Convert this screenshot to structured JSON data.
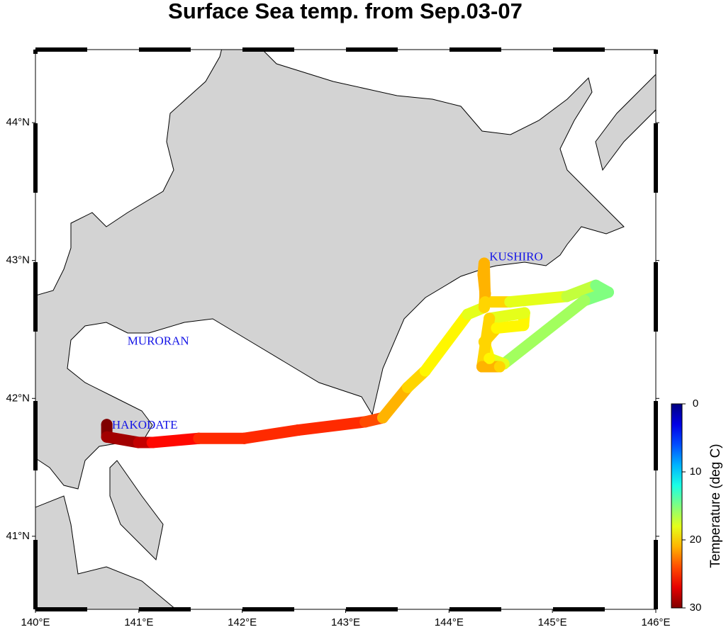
{
  "title": "Surface Sea temp. from Sep.03-07",
  "map": {
    "lon_range": [
      140,
      146
    ],
    "lat_range": [
      40.47,
      44.53
    ],
    "lon_ticks": [
      {
        "value": 140,
        "label": "140°E"
      },
      {
        "value": 141,
        "label": "141°E"
      },
      {
        "value": 142,
        "label": "142°E"
      },
      {
        "value": 143,
        "label": "143°E"
      },
      {
        "value": 144,
        "label": "144°E"
      },
      {
        "value": 145,
        "label": "145°E"
      },
      {
        "value": 146,
        "label": "146°E"
      }
    ],
    "lat_ticks": [
      {
        "value": 41,
        "label": "41°N"
      },
      {
        "value": 42,
        "label": "42°N"
      },
      {
        "value": 43,
        "label": "43°N"
      },
      {
        "value": 44,
        "label": "44°N"
      }
    ],
    "places": [
      {
        "name": "KUSHIRO",
        "lon": 144.39,
        "lat": 43.02
      },
      {
        "name": "MURORAN",
        "lon": 140.89,
        "lat": 42.41
      },
      {
        "name": "HAKODATE",
        "lon": 140.74,
        "lat": 41.8
      }
    ],
    "track": {
      "lon": [
        140.69,
        140.69,
        141.0,
        141.13,
        141.58,
        142.02,
        142.54,
        143.19,
        143.36,
        143.6,
        143.77,
        144.18,
        144.34,
        144.35,
        144.33,
        144.34,
        144.35,
        144.59,
        145.14,
        145.42,
        145.54,
        145.31,
        144.53,
        144.39,
        144.34,
        144.46,
        144.72,
        144.73,
        144.39,
        144.32,
        144.49
      ],
      "lat": [
        41.81,
        41.72,
        41.68,
        41.68,
        41.71,
        41.71,
        41.77,
        41.83,
        41.86,
        42.08,
        42.2,
        42.61,
        42.66,
        42.76,
        42.9,
        42.98,
        42.7,
        42.7,
        42.74,
        42.82,
        42.77,
        42.71,
        42.25,
        42.29,
        42.41,
        42.51,
        42.53,
        42.62,
        42.58,
        42.23,
        42.23
      ],
      "temp": [
        30,
        29,
        28,
        26,
        25,
        25,
        25,
        24,
        21,
        20,
        19,
        18,
        20,
        21,
        21,
        21,
        20,
        18,
        17,
        15,
        15,
        16,
        18,
        19,
        20,
        19,
        19,
        18,
        20,
        21,
        20
      ]
    },
    "colorbar": {
      "label": "Temperature (deg C)",
      "range": [
        0,
        30
      ],
      "ticks": [
        0,
        10,
        20,
        30
      ]
    }
  }
}
